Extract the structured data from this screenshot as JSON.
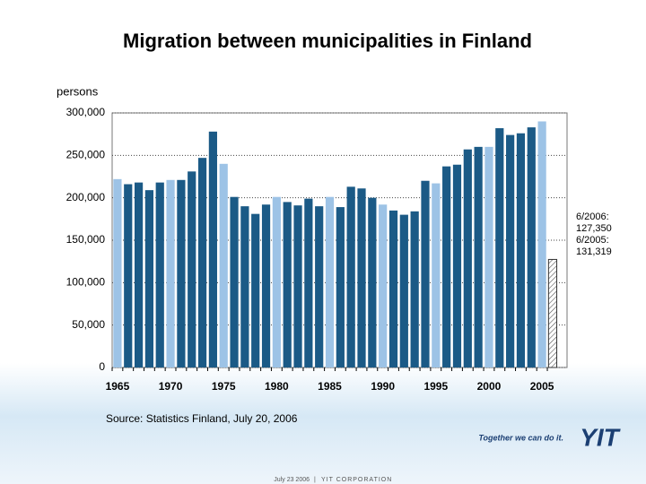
{
  "chart_data": {
    "type": "bar",
    "title": "Migration between municipalities in Finland",
    "y_label": "persons",
    "categories": [
      "1965",
      null,
      null,
      null,
      null,
      "1970",
      null,
      null,
      null,
      null,
      "1975",
      null,
      null,
      null,
      null,
      "1980",
      null,
      null,
      null,
      null,
      "1985",
      null,
      null,
      null,
      null,
      "1990",
      null,
      null,
      null,
      null,
      "1995",
      null,
      null,
      null,
      null,
      "2000",
      null,
      null,
      null,
      null,
      "2005",
      null
    ],
    "values": [
      222000,
      216000,
      218000,
      209000,
      218000,
      221000,
      221000,
      231000,
      247000,
      278000,
      240000,
      201000,
      190000,
      181000,
      192000,
      201000,
      195000,
      191000,
      199000,
      190000,
      201000,
      189000,
      213000,
      211000,
      200000,
      192000,
      185000,
      180000,
      184000,
      220000,
      217000,
      237000,
      239000,
      257000,
      260000,
      260000,
      282000,
      274000,
      276000,
      283000,
      290000,
      127350
    ],
    "colors": [
      "#9dc3e6",
      "#1b5a86",
      "#1b5a86",
      "#1b5a86",
      "#1b5a86",
      "#9dc3e6",
      "#1b5a86",
      "#1b5a86",
      "#1b5a86",
      "#1b5a86",
      "#9dc3e6",
      "#1b5a86",
      "#1b5a86",
      "#1b5a86",
      "#1b5a86",
      "#9dc3e6",
      "#1b5a86",
      "#1b5a86",
      "#1b5a86",
      "#1b5a86",
      "#9dc3e6",
      "#1b5a86",
      "#1b5a86",
      "#1b5a86",
      "#1b5a86",
      "#9dc3e6",
      "#1b5a86",
      "#1b5a86",
      "#1b5a86",
      "#1b5a86",
      "#9dc3e6",
      "#1b5a86",
      "#1b5a86",
      "#1b5a86",
      "#1b5a86",
      "#9dc3e6",
      "#1b5a86",
      "#1b5a86",
      "#1b5a86",
      "#1b5a86",
      "#9dc3e6",
      "hatch"
    ],
    "ylim": [
      0,
      300000
    ],
    "yticks": [
      0,
      {
        "value": 50000,
        "label": "50,000"
      },
      {
        "value": 100000,
        "label": "100,000"
      },
      {
        "value": 150000,
        "label": "150,000"
      },
      {
        "value": 200000,
        "label": "200,000"
      },
      {
        "value": 250000,
        "label": "250,000"
      },
      {
        "value": 300000,
        "label": "300,000"
      }
    ],
    "grid": true,
    "annotation": [
      "6/2006:",
      "127,350",
      "6/2005:",
      "131,319"
    ],
    "source": "Source: Statistics Finland, July 20, 2006"
  },
  "footer": {
    "slogan": "Together we can do it.",
    "logo": "YIT",
    "date": "July 23 2006",
    "company": "YIT CORPORATION"
  }
}
